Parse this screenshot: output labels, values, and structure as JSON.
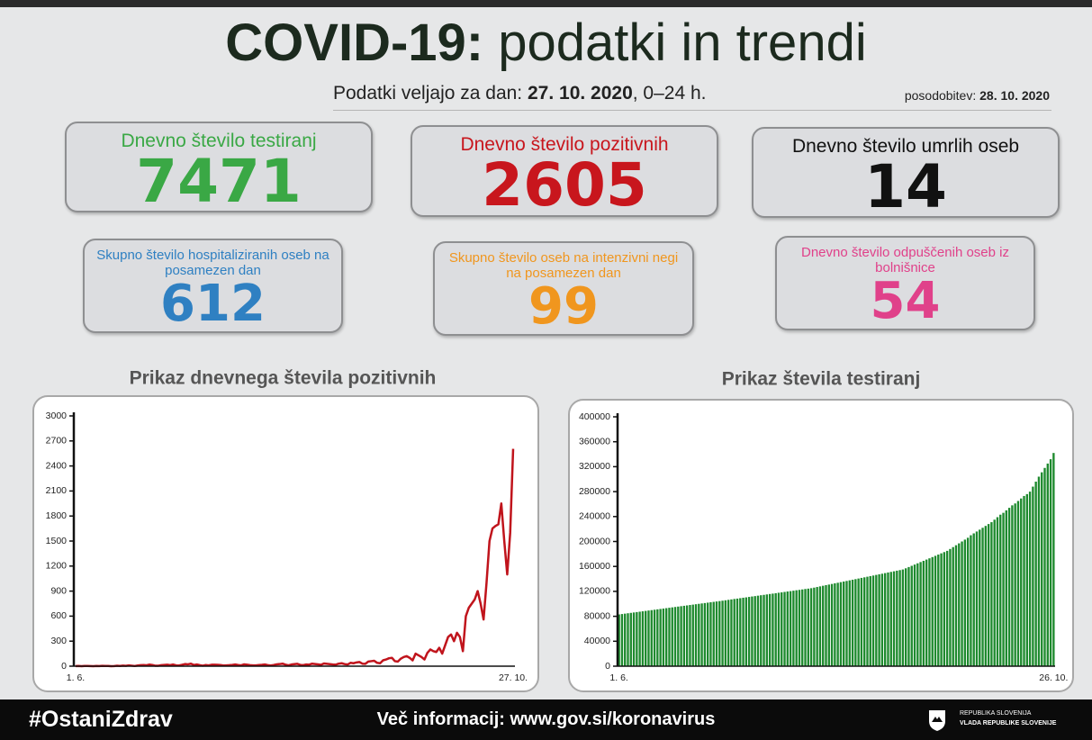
{
  "header": {
    "title_bold": "COVID-19:",
    "title_rest": "podatki in trendi",
    "subtitle_prefix": "Podatki veljajo za dan:",
    "date": "27. 10. 2020",
    "subtitle_suffix": ", 0–24 h.",
    "updated_label": "posodobitev:",
    "updated_date": "28. 10. 2020"
  },
  "cards": [
    {
      "label": "Dnevno število testiranj",
      "value": 7471,
      "color": "#3aa845"
    },
    {
      "label": "Dnevno število pozitivnih",
      "value": 2605,
      "color": "#c8161d"
    },
    {
      "label": "Dnevno število umrlih oseb",
      "value": 14,
      "color": "#111111"
    },
    {
      "label": "Skupno število hospitaliziranih oseb na posamezen dan",
      "value": 612,
      "color": "#2f80c2"
    },
    {
      "label": "Skupno število oseb na intenzivni negi na posamezen dan",
      "value": 99,
      "color": "#f0961e"
    },
    {
      "label": "Dnevno število odpuščenih oseb iz bolnišnice",
      "value": 54,
      "color": "#e0418a"
    }
  ],
  "chart_data": [
    {
      "type": "line",
      "title": "Prikaz dnevnega števila pozitivnih",
      "color": "#c0141c",
      "categories": [
        "1. 6.",
        null,
        null,
        null,
        null,
        null,
        null,
        null,
        null,
        null,
        null,
        null,
        null,
        null,
        null,
        null,
        null,
        null,
        null,
        null,
        null,
        null,
        null,
        null,
        null,
        null,
        null,
        null,
        null,
        null,
        null,
        null,
        null,
        null,
        null,
        null,
        null,
        null,
        null,
        null,
        null,
        null,
        null,
        null,
        null,
        null,
        null,
        null,
        null,
        null,
        null,
        null,
        null,
        null,
        null,
        null,
        null,
        null,
        null,
        null,
        null,
        null,
        null,
        null,
        null,
        null,
        null,
        null,
        null,
        null,
        null,
        null,
        null,
        null,
        null,
        null,
        null,
        null,
        null,
        null,
        null,
        null,
        null,
        null,
        null,
        null,
        null,
        null,
        null,
        null,
        null,
        null,
        null,
        null,
        null,
        null,
        null,
        null,
        null,
        null,
        null,
        null,
        null,
        null,
        null,
        null,
        null,
        null,
        null,
        null,
        null,
        null,
        null,
        null,
        null,
        null,
        null,
        null,
        null,
        null,
        null,
        null,
        null,
        null,
        null,
        null,
        null,
        null,
        null,
        null,
        null,
        null,
        null,
        null,
        null,
        null,
        null,
        null,
        null,
        null,
        null,
        null,
        null,
        null,
        null,
        null,
        null,
        null,
        "27. 10."
      ],
      "values": [
        1,
        2,
        0,
        3,
        2,
        1,
        0,
        2,
        1,
        4,
        3,
        2,
        0,
        1,
        5,
        3,
        7,
        4,
        10,
        6,
        2,
        8,
        12,
        14,
        11,
        19,
        14,
        5,
        6,
        12,
        15,
        18,
        12,
        20,
        10,
        8,
        16,
        25,
        22,
        30,
        14,
        20,
        12,
        6,
        14,
        10,
        17,
        18,
        16,
        13,
        8,
        10,
        12,
        15,
        20,
        14,
        10,
        22,
        18,
        12,
        9,
        10,
        14,
        16,
        20,
        12,
        8,
        14,
        22,
        25,
        30,
        18,
        10,
        20,
        24,
        28,
        15,
        12,
        20,
        18,
        30,
        26,
        22,
        16,
        32,
        28,
        24,
        20,
        18,
        30,
        35,
        25,
        20,
        40,
        35,
        45,
        50,
        30,
        28,
        55,
        60,
        65,
        40,
        35,
        70,
        80,
        95,
        100,
        60,
        55,
        90,
        110,
        120,
        100,
        70,
        150,
        130,
        110,
        80,
        160,
        200,
        180,
        170,
        220,
        150,
        250,
        350,
        380,
        300,
        400,
        350,
        180,
        600,
        700,
        750,
        800,
        900,
        750,
        560,
        1000,
        1500,
        1650,
        1680,
        1700,
        1950,
        1500,
        1100,
        1600,
        2605
      ],
      "ylim": [
        0,
        3000
      ],
      "yticks": [
        0,
        300,
        600,
        900,
        1200,
        1500,
        1800,
        2100,
        2400,
        2700,
        3000
      ]
    },
    {
      "type": "bar",
      "title": "Prikaz števila testiranj",
      "color": "#1e8a2e",
      "categories": [
        "1. 6.",
        null,
        null,
        null,
        null,
        null,
        null,
        null,
        null,
        null,
        null,
        null,
        null,
        null,
        null,
        null,
        null,
        null,
        null,
        null,
        null,
        null,
        null,
        null,
        null,
        null,
        null,
        null,
        null,
        null,
        null,
        null,
        null,
        null,
        null,
        null,
        null,
        null,
        null,
        null,
        null,
        null,
        null,
        null,
        null,
        null,
        null,
        null,
        null,
        null,
        null,
        null,
        null,
        null,
        null,
        null,
        null,
        null,
        null,
        null,
        null,
        null,
        null,
        null,
        null,
        null,
        null,
        null,
        null,
        null,
        null,
        null,
        null,
        null,
        null,
        null,
        null,
        null,
        null,
        null,
        null,
        null,
        null,
        null,
        null,
        null,
        null,
        null,
        null,
        null,
        null,
        null,
        null,
        null,
        null,
        null,
        null,
        null,
        null,
        null,
        null,
        null,
        null,
        null,
        null,
        null,
        null,
        null,
        null,
        null,
        null,
        null,
        null,
        null,
        null,
        null,
        null,
        null,
        null,
        null,
        null,
        null,
        null,
        null,
        null,
        null,
        null,
        null,
        null,
        null,
        null,
        null,
        null,
        null,
        null,
        null,
        null,
        null,
        null,
        null,
        null,
        null,
        null,
        null,
        null,
        null,
        null,
        "26. 10."
      ],
      "values": [
        83000,
        83630,
        84260,
        84890,
        85520,
        86150,
        86780,
        87410,
        88040,
        88670,
        89300,
        89930,
        90560,
        91190,
        91820,
        92450,
        93080,
        93710,
        94340,
        94970,
        95600,
        96230,
        96860,
        97490,
        98120,
        98750,
        99380,
        100010,
        100640,
        101270,
        101900,
        102530,
        103160,
        103790,
        104420,
        105050,
        105700,
        106400,
        107100,
        107800,
        108400,
        109100,
        109800,
        110400,
        111100,
        111800,
        112400,
        113100,
        113800,
        114400,
        115100,
        115800,
        116400,
        117100,
        117800,
        118400,
        119100,
        119800,
        120400,
        121100,
        121800,
        122400,
        123100,
        123800,
        124400,
        125100,
        126000,
        127000,
        128000,
        129000,
        130000,
        130900,
        131900,
        132900,
        133800,
        134800,
        135800,
        136700,
        137700,
        138700,
        139600,
        140600,
        141600,
        142500,
        143500,
        144500,
        145400,
        146400,
        147400,
        148300,
        149300,
        150300,
        151200,
        152200,
        153200,
        154100,
        155100,
        157000,
        159000,
        161000,
        163000,
        165000,
        167000,
        169000,
        171000,
        173000,
        175000,
        177000,
        179000,
        181000,
        183000,
        185000,
        188000,
        191000,
        194000,
        197000,
        200000,
        203000,
        206000,
        210000,
        213000,
        216000,
        219000,
        222000,
        225000,
        228000,
        231000,
        235000,
        239000,
        243000,
        246000,
        250000,
        254000,
        258000,
        261000,
        265000,
        269000,
        273000,
        276000,
        280000,
        288000,
        296000,
        304000,
        311000,
        318000,
        325000,
        332000,
        342000
      ],
      "ylim": [
        0,
        400000
      ],
      "yticks": [
        0,
        40000,
        80000,
        120000,
        160000,
        200000,
        240000,
        280000,
        320000,
        360000,
        400000
      ]
    }
  ],
  "footer": {
    "hashtag": "#OstaniZdrav",
    "info": "Več informacij: www.gov.si/koronavirus",
    "gov_line1": "REPUBLIKA SLOVENIJA",
    "gov_line2": "VLADA REPUBLIKE SLOVENIJE"
  }
}
